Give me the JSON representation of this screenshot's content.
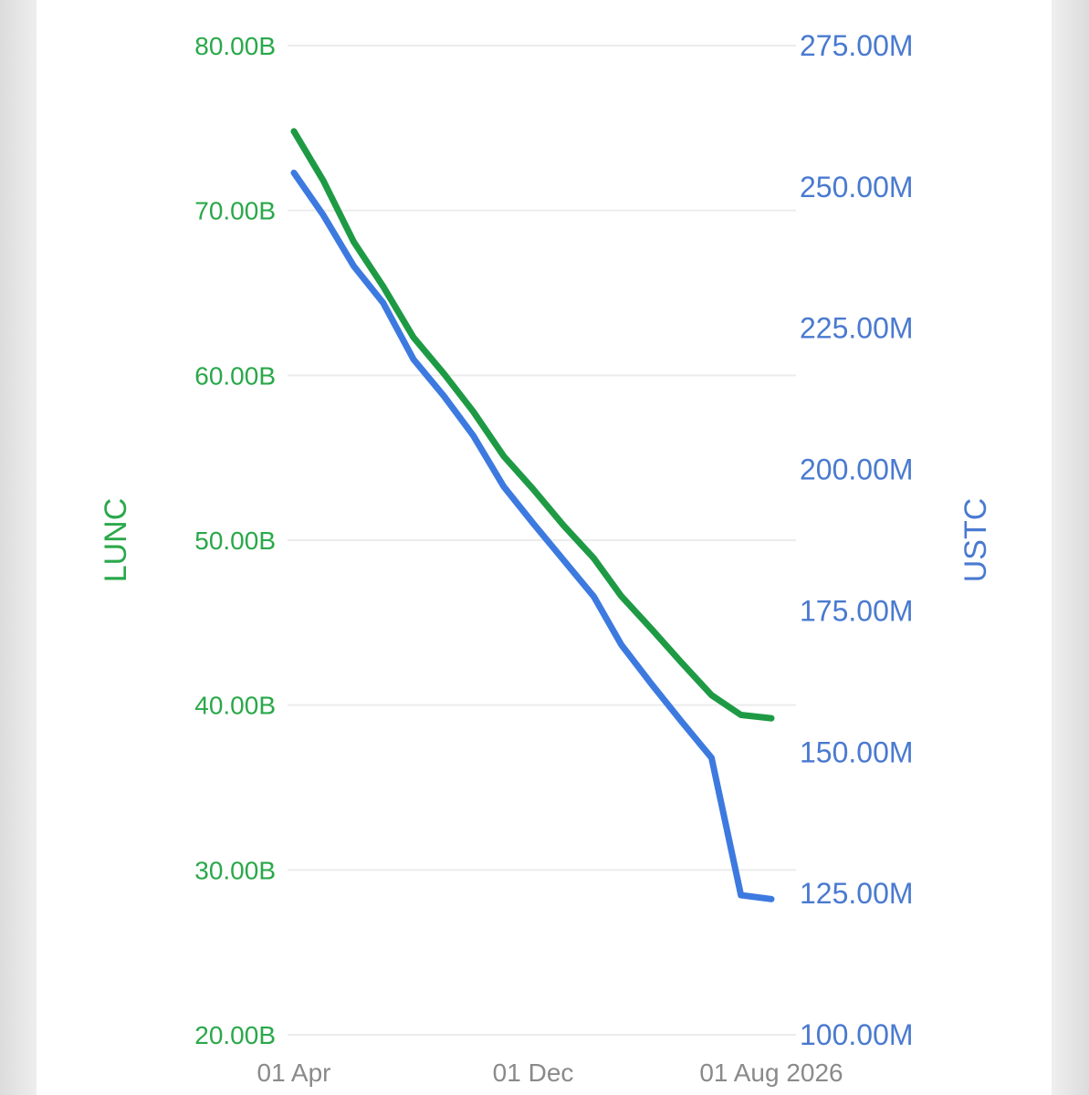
{
  "chart_data": {
    "type": "line",
    "y_left": {
      "label": "LUNC",
      "range": [
        20,
        80
      ],
      "ticks": [
        "80.00B",
        "70.00B",
        "60.00B",
        "50.00B",
        "40.00B",
        "30.00B",
        "20.00B"
      ],
      "tick_values": [
        80,
        70,
        60,
        50,
        40,
        30,
        20
      ]
    },
    "y_right": {
      "label": "USTC",
      "range": [
        100,
        275
      ],
      "ticks": [
        "275.00M",
        "250.00M",
        "225.00M",
        "200.00M",
        "175.00M",
        "150.00M",
        "125.00M",
        "100.00M"
      ],
      "tick_values": [
        275,
        250,
        225,
        200,
        175,
        150,
        125,
        100
      ]
    },
    "x_axis": {
      "ticks": [
        "01 Apr",
        "01 Dec",
        "01 Aug 2026"
      ],
      "range": [
        "2025-04-01",
        "2026-08-01"
      ]
    },
    "x": [
      "2025-04-01",
      "2025-05-01",
      "2025-06-01",
      "2025-07-01",
      "2025-08-01",
      "2025-09-01",
      "2025-10-01",
      "2025-11-01",
      "2025-12-01",
      "2026-01-01",
      "2026-02-01",
      "2026-03-01",
      "2026-04-01",
      "2026-05-01",
      "2026-06-01",
      "2026-07-01",
      "2026-08-01"
    ],
    "series": [
      {
        "name": "LUNC",
        "axis": "left",
        "color": "#1e9a45",
        "values": [
          74.8,
          71.8,
          68.1,
          65.4,
          62.3,
          60.1,
          57.8,
          55.1,
          53.1,
          50.9,
          48.9,
          46.6,
          44.6,
          42.6,
          40.6,
          39.4,
          39.2
        ]
      },
      {
        "name": "USTC",
        "axis": "right",
        "color": "#3d7ae0",
        "values": [
          252.5,
          245.0,
          236.0,
          229.5,
          219.5,
          213.0,
          206.0,
          197.0,
          190.5,
          184.0,
          177.5,
          169.0,
          162.0,
          155.5,
          149.0,
          124.7,
          124.0
        ]
      }
    ],
    "grid": true,
    "legend": "none"
  }
}
